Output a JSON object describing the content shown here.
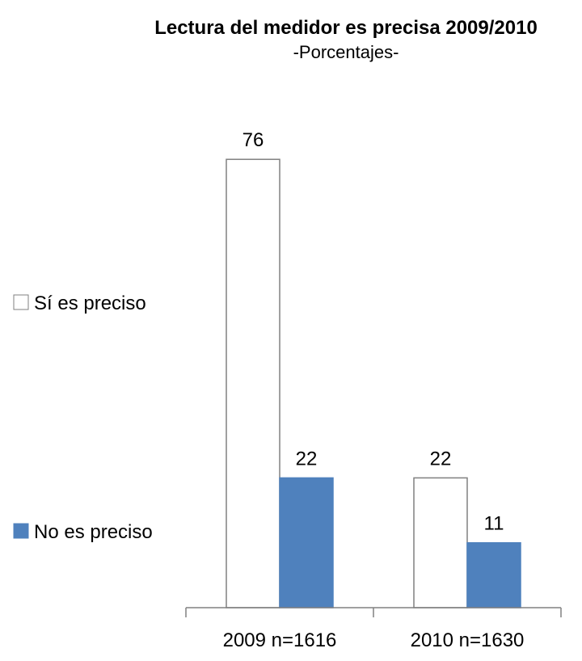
{
  "chart_data": {
    "type": "bar",
    "title": "Lectura del  medidor es precisa  2009/2010",
    "subtitle": "-Porcentajes-",
    "categories": [
      "2009 n=1616",
      "2010 n=1630"
    ],
    "series": [
      {
        "name": "Sí es preciso",
        "values": [
          76,
          22
        ],
        "color": "#ffffff",
        "stroke": "#808080"
      },
      {
        "name": "No es preciso",
        "values": [
          22,
          11
        ],
        "color": "#4f81bd",
        "stroke": "#4f81bd"
      }
    ],
    "legend_position": "left",
    "grid": false,
    "ylim": [
      0,
      100
    ]
  }
}
